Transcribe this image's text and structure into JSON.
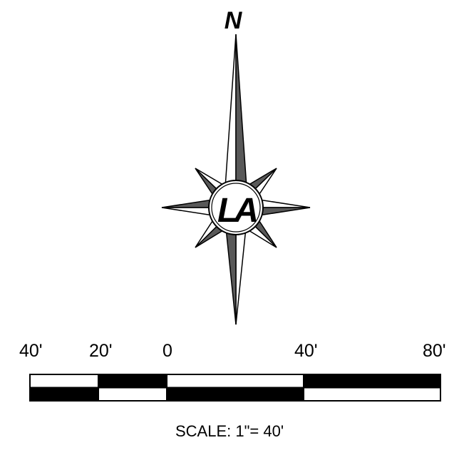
{
  "compass": {
    "north_label": "N",
    "logo_text": "LA"
  },
  "scale_bar": {
    "tick_labels": [
      "40'",
      "20'",
      "0",
      "40'",
      "80'"
    ],
    "scale_label": "SCALE: 1\"= 40'"
  },
  "colors": {
    "ink": "#000000",
    "fill_gray": "#595959",
    "paper": "#ffffff"
  }
}
